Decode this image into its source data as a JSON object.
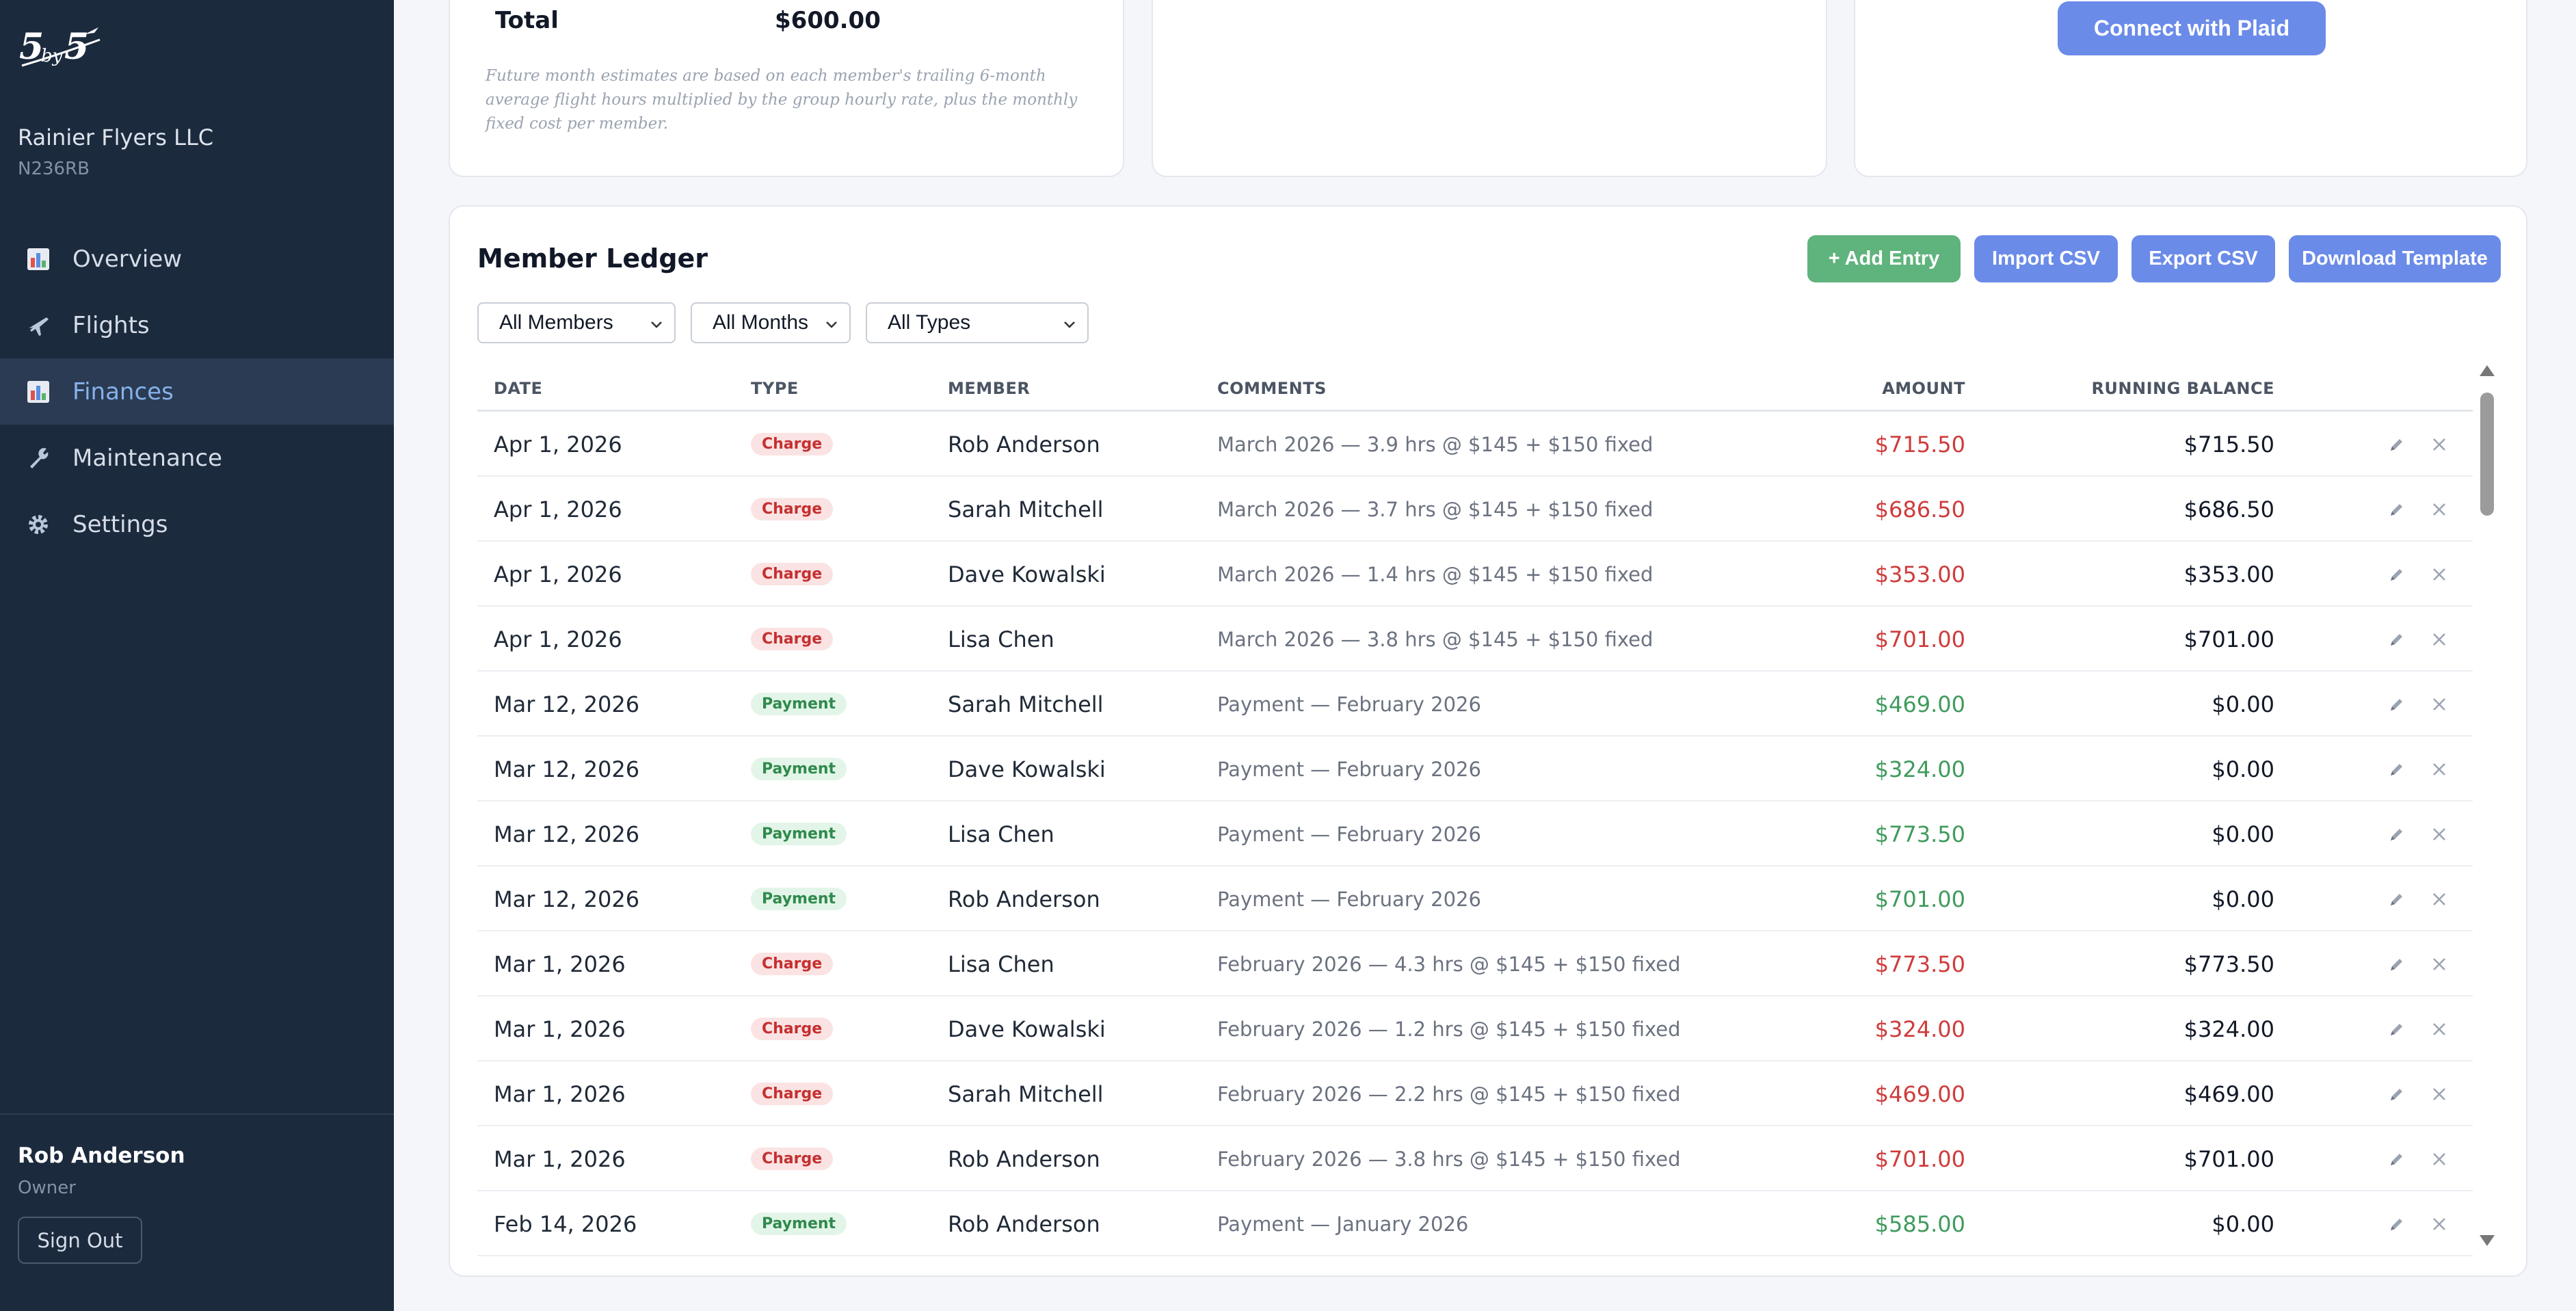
{
  "sidebar": {
    "logo_text": "5by5",
    "org_name": "Rainier Flyers LLC",
    "tail_number": "N236RB",
    "nav": [
      {
        "label": "Overview",
        "icon": "chart-icon",
        "active": false
      },
      {
        "label": "Flights",
        "icon": "airplane-icon",
        "active": false
      },
      {
        "label": "Finances",
        "icon": "chart-icon",
        "active": true
      },
      {
        "label": "Maintenance",
        "icon": "wrench-icon",
        "active": false
      },
      {
        "label": "Settings",
        "icon": "gear-icon",
        "active": false
      }
    ],
    "user_name": "Rob Anderson",
    "user_role": "Owner",
    "sign_out_label": "Sign Out"
  },
  "estimate_card": {
    "total_label": "Total",
    "total_value": "$600.00",
    "note": "Future month estimates are based on each member's trailing 6-month average flight hours multiplied by the group hourly rate, plus the monthly fixed cost per member."
  },
  "bank_card": {
    "connect_label": "Connect with Plaid"
  },
  "ledger": {
    "title": "Member Ledger",
    "buttons": {
      "add": "+ Add Entry",
      "import": "Import CSV",
      "export": "Export CSV",
      "template": "Download Template"
    },
    "filters": {
      "members": "All Members",
      "months": "All Months",
      "types": "All Types"
    },
    "columns": {
      "date": "DATE",
      "type": "TYPE",
      "member": "MEMBER",
      "comments": "COMMENTS",
      "amount": "AMOUNT",
      "balance": "RUNNING BALANCE"
    },
    "rows": [
      {
        "date": "Apr 1, 2026",
        "type": "Charge",
        "member": "Rob Anderson",
        "comments": "March 2026 — 3.9 hrs @ $145 + $150 fixed",
        "amount": "$715.50",
        "balance": "$715.50"
      },
      {
        "date": "Apr 1, 2026",
        "type": "Charge",
        "member": "Sarah Mitchell",
        "comments": "March 2026 — 3.7 hrs @ $145 + $150 fixed",
        "amount": "$686.50",
        "balance": "$686.50"
      },
      {
        "date": "Apr 1, 2026",
        "type": "Charge",
        "member": "Dave Kowalski",
        "comments": "March 2026 — 1.4 hrs @ $145 + $150 fixed",
        "amount": "$353.00",
        "balance": "$353.00"
      },
      {
        "date": "Apr 1, 2026",
        "type": "Charge",
        "member": "Lisa Chen",
        "comments": "March 2026 — 3.8 hrs @ $145 + $150 fixed",
        "amount": "$701.00",
        "balance": "$701.00"
      },
      {
        "date": "Mar 12, 2026",
        "type": "Payment",
        "member": "Sarah Mitchell",
        "comments": "Payment — February 2026",
        "amount": "$469.00",
        "balance": "$0.00"
      },
      {
        "date": "Mar 12, 2026",
        "type": "Payment",
        "member": "Dave Kowalski",
        "comments": "Payment — February 2026",
        "amount": "$324.00",
        "balance": "$0.00"
      },
      {
        "date": "Mar 12, 2026",
        "type": "Payment",
        "member": "Lisa Chen",
        "comments": "Payment — February 2026",
        "amount": "$773.50",
        "balance": "$0.00"
      },
      {
        "date": "Mar 12, 2026",
        "type": "Payment",
        "member": "Rob Anderson",
        "comments": "Payment — February 2026",
        "amount": "$701.00",
        "balance": "$0.00"
      },
      {
        "date": "Mar 1, 2026",
        "type": "Charge",
        "member": "Lisa Chen",
        "comments": "February 2026 — 4.3 hrs @ $145 + $150 fixed",
        "amount": "$773.50",
        "balance": "$773.50"
      },
      {
        "date": "Mar 1, 2026",
        "type": "Charge",
        "member": "Dave Kowalski",
        "comments": "February 2026 — 1.2 hrs @ $145 + $150 fixed",
        "amount": "$324.00",
        "balance": "$324.00"
      },
      {
        "date": "Mar 1, 2026",
        "type": "Charge",
        "member": "Sarah Mitchell",
        "comments": "February 2026 — 2.2 hrs @ $145 + $150 fixed",
        "amount": "$469.00",
        "balance": "$469.00"
      },
      {
        "date": "Mar 1, 2026",
        "type": "Charge",
        "member": "Rob Anderson",
        "comments": "February 2026 — 3.8 hrs @ $145 + $150 fixed",
        "amount": "$701.00",
        "balance": "$701.00"
      },
      {
        "date": "Feb 14, 2026",
        "type": "Payment",
        "member": "Rob Anderson",
        "comments": "Payment — January 2026",
        "amount": "$585.00",
        "balance": "$0.00"
      }
    ]
  },
  "colors": {
    "sidebar_bg": "#1c2a3e",
    "accent": "#6b8be9",
    "success": "#5fb37c",
    "charge": "#cf3b3b",
    "payment": "#3f9b5c"
  }
}
